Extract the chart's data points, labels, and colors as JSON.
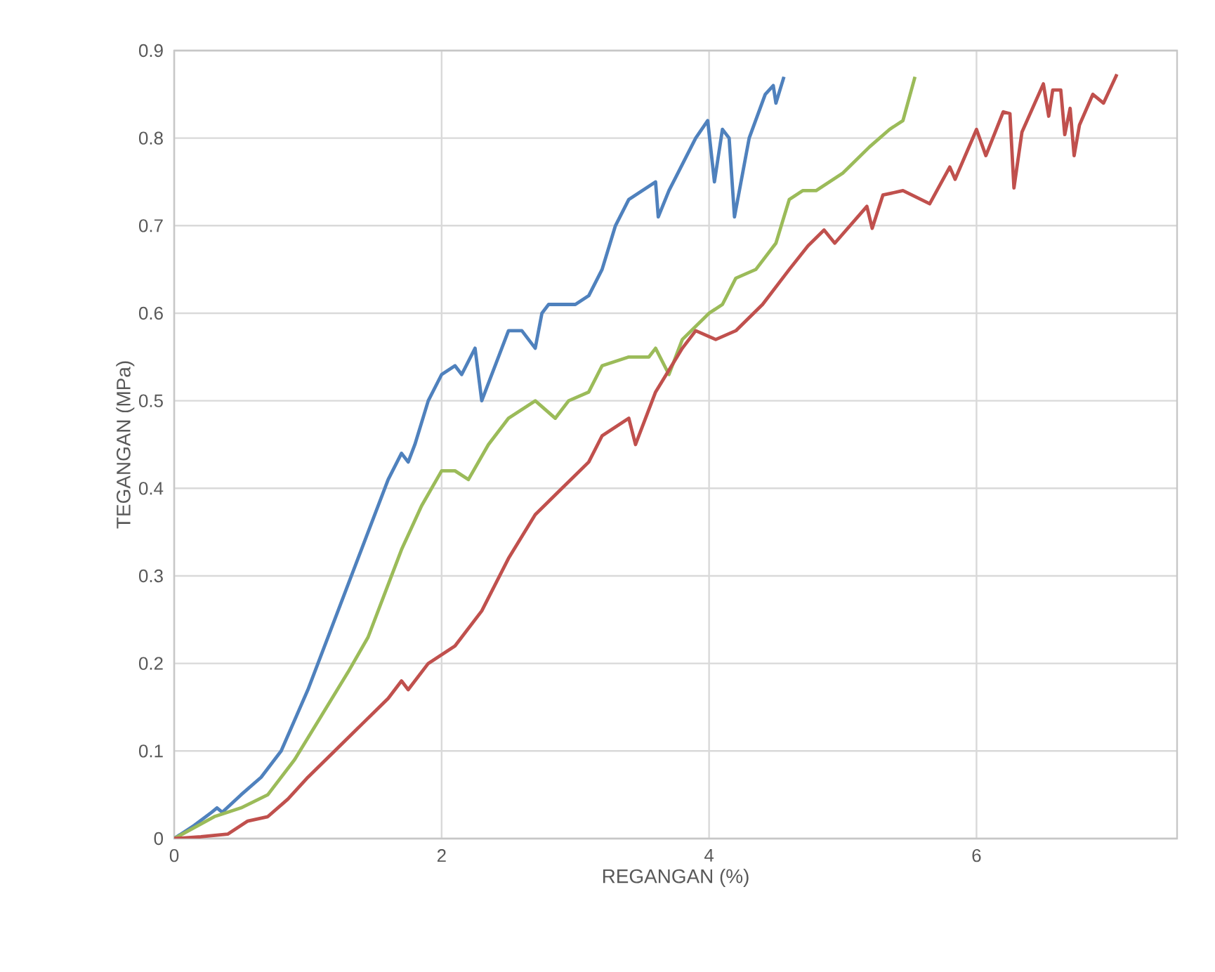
{
  "chart_data": {
    "type": "line",
    "xlabel": "REGANGAN (%)",
    "ylabel": "TEGANGAN (MPa)",
    "xlim": [
      0,
      7.5
    ],
    "xticks": [
      0,
      2,
      4,
      6
    ],
    "ylim": [
      0,
      0.9
    ],
    "yticks": [
      0,
      0.1,
      0.2,
      0.3,
      0.4,
      0.5,
      0.6,
      0.7,
      0.8,
      0.9
    ],
    "grid": true,
    "marker": "none",
    "line_style": "solid",
    "series": [
      {
        "color": "#4f81bd",
        "x": [
          0,
          0.15,
          0.28,
          0.32,
          0.36,
          0.5,
          0.65,
          0.8,
          1.0,
          1.2,
          1.4,
          1.6,
          1.7,
          1.75,
          1.8,
          1.9,
          2.0,
          2.1,
          2.15,
          2.25,
          2.3,
          2.35,
          2.5,
          2.6,
          2.7,
          2.75,
          2.8,
          3.0,
          3.1,
          3.2,
          3.3,
          3.4,
          3.5,
          3.6,
          3.62,
          3.7,
          3.8,
          3.9,
          3.99,
          4.04,
          4.1,
          4.15,
          4.19,
          4.3,
          4.42,
          4.48,
          4.5,
          4.56
        ],
        "values": [
          0,
          0.015,
          0.03,
          0.035,
          0.03,
          0.05,
          0.07,
          0.1,
          0.17,
          0.25,
          0.33,
          0.41,
          0.44,
          0.43,
          0.45,
          0.5,
          0.53,
          0.54,
          0.53,
          0.56,
          0.5,
          0.52,
          0.58,
          0.58,
          0.56,
          0.6,
          0.61,
          0.61,
          0.62,
          0.65,
          0.7,
          0.73,
          0.74,
          0.75,
          0.71,
          0.74,
          0.77,
          0.8,
          0.82,
          0.75,
          0.81,
          0.8,
          0.71,
          0.8,
          0.85,
          0.86,
          0.84,
          0.87
        ]
      },
      {
        "color": "#9bbb59",
        "x": [
          0,
          0.3,
          0.5,
          0.7,
          0.9,
          1.1,
          1.3,
          1.45,
          1.55,
          1.7,
          1.85,
          2.0,
          2.1,
          2.2,
          2.35,
          2.5,
          2.7,
          2.85,
          2.95,
          3.1,
          3.2,
          3.4,
          3.55,
          3.6,
          3.7,
          3.8,
          4.0,
          4.1,
          4.2,
          4.35,
          4.5,
          4.6,
          4.7,
          4.8,
          5.0,
          5.2,
          5.35,
          5.45,
          5.54
        ],
        "values": [
          0,
          0.025,
          0.035,
          0.05,
          0.09,
          0.14,
          0.19,
          0.23,
          0.27,
          0.33,
          0.38,
          0.42,
          0.42,
          0.41,
          0.45,
          0.48,
          0.5,
          0.48,
          0.5,
          0.51,
          0.54,
          0.55,
          0.55,
          0.56,
          0.53,
          0.57,
          0.6,
          0.61,
          0.64,
          0.65,
          0.68,
          0.73,
          0.74,
          0.74,
          0.76,
          0.79,
          0.81,
          0.82,
          0.87
        ]
      },
      {
        "color": "#c0504d",
        "x": [
          0,
          0.2,
          0.4,
          0.55,
          0.7,
          0.85,
          1.0,
          1.2,
          1.4,
          1.6,
          1.7,
          1.75,
          1.9,
          2.1,
          2.3,
          2.5,
          2.7,
          2.9,
          3.1,
          3.2,
          3.4,
          3.45,
          3.6,
          3.8,
          3.9,
          4.05,
          4.2,
          4.4,
          4.6,
          4.74,
          4.86,
          4.94,
          5.18,
          5.22,
          5.3,
          5.45,
          5.65,
          5.8,
          5.84,
          6.0,
          6.07,
          6.2,
          6.25,
          6.28,
          6.34,
          6.5,
          6.54,
          6.57,
          6.63,
          6.66,
          6.7,
          6.73,
          6.77,
          6.87,
          6.95,
          7.05
        ],
        "values": [
          0,
          0.002,
          0.005,
          0.02,
          0.025,
          0.045,
          0.07,
          0.1,
          0.13,
          0.16,
          0.18,
          0.17,
          0.2,
          0.22,
          0.26,
          0.32,
          0.37,
          0.4,
          0.43,
          0.46,
          0.48,
          0.45,
          0.51,
          0.56,
          0.58,
          0.57,
          0.58,
          0.61,
          0.65,
          0.677,
          0.695,
          0.68,
          0.722,
          0.697,
          0.735,
          0.74,
          0.725,
          0.767,
          0.753,
          0.81,
          0.78,
          0.83,
          0.828,
          0.743,
          0.807,
          0.862,
          0.825,
          0.855,
          0.855,
          0.804,
          0.834,
          0.78,
          0.815,
          0.85,
          0.84,
          0.873
        ]
      }
    ]
  }
}
